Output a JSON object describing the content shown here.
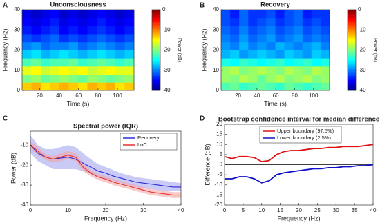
{
  "chart_data": [
    {
      "type": "heatmap",
      "panel_label": "A",
      "title": "Unconsciousness",
      "xlabel": "Time (s)",
      "ylabel": "Frequency (Hz)",
      "colorbar_label": "Power (dB)",
      "xlim": [
        2,
        117
      ],
      "xticks": [
        20,
        40,
        60,
        80,
        100
      ],
      "ylim": [
        0,
        40
      ],
      "yticks": [
        0,
        10,
        20,
        30,
        40
      ],
      "clim": [
        -40,
        0
      ],
      "cticks": [
        -40,
        -30,
        -20,
        -10,
        0
      ],
      "z": [
        [
          -13,
          -12,
          -14,
          -13,
          -12,
          -13,
          -14,
          -12,
          -13,
          -12,
          -14,
          -13
        ],
        [
          -20,
          -19,
          -21,
          -20,
          -19,
          -20,
          -21,
          -19,
          -20,
          -21,
          -20,
          -19
        ],
        [
          -16,
          -15,
          -17,
          -16,
          -15,
          -16,
          -15,
          -17,
          -16,
          -15,
          -16,
          -16
        ],
        [
          -22,
          -21,
          -23,
          -22,
          -22,
          -21,
          -23,
          -22,
          -21,
          -22,
          -23,
          -22
        ],
        [
          -27,
          -26,
          -28,
          -27,
          -26,
          -27,
          -28,
          -27,
          -26,
          -27,
          -28,
          -27
        ],
        [
          -30,
          -29,
          -31,
          -30,
          -30,
          -29,
          -31,
          -30,
          -29,
          -30,
          -31,
          -30
        ],
        [
          -32,
          -33,
          -32,
          -31,
          -33,
          -32,
          -33,
          -32,
          -31,
          -32,
          -33,
          -32
        ],
        [
          -34,
          -35,
          -34,
          -33,
          -35,
          -34,
          -35,
          -34,
          -33,
          -34,
          -35,
          -34
        ],
        [
          -35,
          -36,
          -35,
          -34,
          -36,
          -35,
          -36,
          -35,
          -34,
          -35,
          -36,
          -35
        ],
        [
          -36,
          -37,
          -36,
          -35,
          -37,
          -36,
          -37,
          -36,
          -35,
          -36,
          -37,
          -36
        ]
      ]
    },
    {
      "type": "heatmap",
      "panel_label": "B",
      "title": "Recovery",
      "xlabel": "Time (s)",
      "ylabel": "Frequency (Hz)",
      "colorbar_label": "Power (dB)",
      "xlim": [
        2,
        117
      ],
      "xticks": [
        20,
        40,
        60,
        80,
        100
      ],
      "ylim": [
        0,
        40
      ],
      "yticks": [
        0,
        10,
        20,
        30,
        40
      ],
      "clim": [
        -40,
        0
      ],
      "cticks": [
        -40,
        -30,
        -20,
        -10,
        0
      ],
      "z": [
        [
          -22,
          -21,
          -23,
          -22,
          -21,
          -22,
          -23,
          -21,
          -22,
          -23,
          -22,
          -21
        ],
        [
          -19,
          -20,
          -18,
          -19,
          -21,
          -19,
          -18,
          -20,
          -19,
          -18,
          -20,
          -19
        ],
        [
          -19,
          -18,
          -20,
          -19,
          -18,
          -19,
          -20,
          -18,
          -19,
          -20,
          -18,
          -19
        ],
        [
          -24,
          -25,
          -23,
          -24,
          -25,
          -24,
          -23,
          -25,
          -24,
          -23,
          -25,
          -24
        ],
        [
          -28,
          -27,
          -29,
          -28,
          -27,
          -28,
          -29,
          -27,
          -28,
          -29,
          -27,
          -28
        ],
        [
          -29,
          -30,
          -28,
          -30,
          -29,
          -30,
          -28,
          -29,
          -30,
          -29,
          -28,
          -30
        ],
        [
          -30,
          -31,
          -29,
          -31,
          -30,
          -29,
          -31,
          -30,
          -29,
          -31,
          -30,
          -31
        ],
        [
          -31,
          -32,
          -30,
          -32,
          -31,
          -30,
          -32,
          -31,
          -30,
          -32,
          -31,
          -32
        ],
        [
          -32,
          -33,
          -31,
          -33,
          -32,
          -31,
          -33,
          -32,
          -31,
          -33,
          -32,
          -33
        ],
        [
          -32,
          -34,
          -31,
          -33,
          -33,
          -32,
          -34,
          -32,
          -31,
          -34,
          -33,
          -33
        ]
      ]
    },
    {
      "type": "line",
      "panel_label": "C",
      "title": "Spectral power (IQR)",
      "xlabel": "Frequency (Hz)",
      "ylabel": "Power (dB)",
      "xlim": [
        0,
        40
      ],
      "xticks": [
        0,
        10,
        20,
        30,
        40
      ],
      "ylim": [
        -40,
        -3
      ],
      "yticks": [
        -40,
        -30,
        -20,
        -10
      ],
      "legend": "upper right",
      "x": [
        0,
        2,
        4,
        6,
        8,
        10,
        12,
        14,
        16,
        18,
        20,
        22,
        24,
        26,
        28,
        30,
        32,
        34,
        36,
        38,
        40
      ],
      "series": [
        {
          "name": "Recovery",
          "color": "#2b2bd9",
          "band_color": "#9f9ff0",
          "values": [
            -10,
            -14,
            -16,
            -17,
            -16.5,
            -16,
            -17,
            -19,
            -21,
            -23,
            -24,
            -25.5,
            -26.5,
            -27.5,
            -28.5,
            -29,
            -29.5,
            -30,
            -30.5,
            -31,
            -31
          ],
          "lower": [
            -14,
            -18,
            -20,
            -22,
            -22,
            -22,
            -22,
            -23,
            -24.5,
            -26,
            -27,
            -28,
            -29,
            -30,
            -31,
            -31.5,
            -32,
            -32.5,
            -33,
            -33,
            -33
          ],
          "upper": [
            -5,
            -10,
            -12,
            -12,
            -11,
            -10,
            -11,
            -14,
            -17,
            -19.5,
            -21,
            -22.5,
            -24,
            -25,
            -26,
            -26.5,
            -27,
            -27.5,
            -28,
            -28.5,
            -29
          ]
        },
        {
          "name": "LoC",
          "color": "#e83030",
          "band_color": "#f2a0a0",
          "values": [
            -10,
            -13,
            -16,
            -17,
            -16,
            -15,
            -16,
            -21,
            -24,
            -26,
            -27,
            -28.5,
            -29.5,
            -30.5,
            -31.5,
            -32.5,
            -33.5,
            -34,
            -34.5,
            -35,
            -35
          ],
          "lower": [
            -12,
            -15,
            -17.5,
            -18.5,
            -18,
            -17,
            -18,
            -23,
            -25.5,
            -27.5,
            -28.5,
            -30,
            -31,
            -32,
            -33,
            -34,
            -35,
            -35.5,
            -36,
            -36.5,
            -36.5
          ],
          "upper": [
            -8,
            -11,
            -14.5,
            -15.5,
            -14,
            -13,
            -14,
            -19,
            -22.5,
            -24.5,
            -25.5,
            -27,
            -28,
            -29,
            -30,
            -31,
            -32,
            -32.5,
            -33,
            -33.5,
            -33.5
          ]
        }
      ]
    },
    {
      "type": "line",
      "panel_label": "D",
      "title": "Bootstrap confidence interval for median difference",
      "xlabel": "Frequency (Hz)",
      "ylabel": "Difference (dB)",
      "xlim": [
        0,
        40
      ],
      "xticks": [
        0,
        5,
        10,
        15,
        20,
        25,
        30,
        35,
        40
      ],
      "ylim": [
        -20,
        20
      ],
      "yticks": [
        -20,
        -15,
        -10,
        -5,
        0,
        5,
        10,
        15,
        20
      ],
      "legend": "upper right",
      "reference_line": 0,
      "x": [
        0,
        2,
        4,
        6,
        8,
        10,
        12,
        14,
        16,
        18,
        20,
        22,
        24,
        26,
        28,
        30,
        32,
        34,
        36,
        38,
        40
      ],
      "series": [
        {
          "name": "Upper boundary (97.5%)",
          "color": "#e01010",
          "values": [
            4,
            3,
            4,
            4,
            3.5,
            1.5,
            2,
            5,
            6.5,
            7,
            7,
            7.5,
            8,
            8,
            8.5,
            8.5,
            9,
            9,
            9,
            9.5,
            10
          ]
        },
        {
          "name": "Lower boundary (2.5%)",
          "color": "#1010c8",
          "values": [
            -7,
            -7,
            -6,
            -6,
            -7,
            -9,
            -8,
            -5,
            -4,
            -3.5,
            -3,
            -2.5,
            -2,
            -2,
            -1.5,
            -1.5,
            -1,
            -1,
            -0.5,
            -0.5,
            0
          ]
        }
      ]
    }
  ]
}
